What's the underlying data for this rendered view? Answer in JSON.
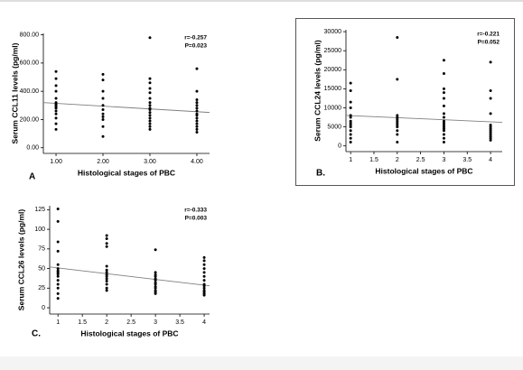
{
  "chart_data": [
    {
      "type": "scatter",
      "panel_label": "A",
      "xlabel": "Histological stages of PBC",
      "ylabel": "Serum CCL11 levels (pg/ml)",
      "annotations": [
        "r=-0.257",
        "P=0.023"
      ],
      "color": "#000000",
      "trend_color": "#7f7f7f",
      "xlim": [
        0.73,
        4.27
      ],
      "ylim": [
        -40,
        810
      ],
      "xticks": [
        {
          "value": 1,
          "label": "1.00"
        },
        {
          "value": 2,
          "label": "2.00"
        },
        {
          "value": 3,
          "label": "3.00"
        },
        {
          "value": 4,
          "label": "4.00"
        }
      ],
      "yticks": [
        {
          "value": 0,
          "label": "0.00"
        },
        {
          "value": 200,
          "label": "200.00"
        },
        {
          "value": 400,
          "label": "400.00"
        },
        {
          "value": 600,
          "label": "600.00"
        },
        {
          "value": 800,
          "label": "800.00"
        }
      ],
      "x": [
        1,
        1,
        1,
        1,
        1,
        1,
        1,
        1,
        1,
        1,
        1,
        1,
        1,
        1,
        1,
        2,
        2,
        2,
        2,
        2,
        2,
        2,
        2,
        2,
        2,
        2,
        3,
        3,
        3,
        3,
        3,
        3,
        3,
        3,
        3,
        3,
        3,
        3,
        3,
        3,
        3,
        3,
        3,
        4,
        4,
        4,
        4,
        4,
        4,
        4,
        4,
        4,
        4,
        4,
        4,
        4,
        4,
        4
      ],
      "values": [
        540,
        490,
        440,
        400,
        350,
        320,
        310,
        300,
        290,
        280,
        260,
        240,
        210,
        170,
        130,
        520,
        480,
        400,
        350,
        300,
        270,
        240,
        220,
        200,
        150,
        80,
        780,
        490,
        460,
        420,
        390,
        350,
        320,
        300,
        280,
        270,
        250,
        230,
        210,
        190,
        170,
        150,
        130,
        560,
        400,
        340,
        320,
        300,
        280,
        260,
        240,
        230,
        210,
        190,
        170,
        150,
        130,
        110
      ],
      "trend": {
        "x": [
          0.73,
          4.27
        ],
        "y": [
          320,
          250
        ]
      }
    },
    {
      "type": "scatter",
      "panel_label": "B.",
      "xlabel": "Histological stages of PBC",
      "ylabel": "Serum CCL24 levels (pg/ml)",
      "annotations": [
        "r=-0.221",
        "P=0.052"
      ],
      "color": "#000000",
      "trend_color": "#7f7f7f",
      "xlim": [
        0.9,
        4.25
      ],
      "ylim": [
        -1500,
        30500
      ],
      "xticks": [
        1,
        1.5,
        2,
        2.5,
        3,
        3.5,
        4
      ],
      "yticks": [
        0,
        5000,
        10000,
        15000,
        20000,
        25000,
        30000
      ],
      "x": [
        1,
        1,
        1,
        1,
        1,
        1,
        1,
        1,
        1,
        1,
        1,
        1,
        1,
        1,
        2,
        2,
        2,
        2,
        2,
        2,
        2,
        2,
        2,
        2,
        2,
        2,
        3,
        3,
        3,
        3,
        3,
        3,
        3,
        3,
        3,
        3,
        3,
        3,
        3,
        3,
        3,
        3,
        3,
        4,
        4,
        4,
        4,
        4,
        4,
        4,
        4,
        4,
        4,
        4,
        4,
        4
      ],
      "values": [
        16500,
        14500,
        11500,
        10000,
        8000,
        7500,
        6500,
        6000,
        5500,
        5000,
        4000,
        3000,
        2000,
        1000,
        28500,
        17500,
        8000,
        7500,
        7000,
        6500,
        6000,
        5500,
        5000,
        4000,
        3000,
        1000,
        22500,
        19000,
        15000,
        14000,
        12500,
        10500,
        8500,
        7500,
        6500,
        6000,
        5500,
        5000,
        4500,
        4000,
        3000,
        2000,
        1000,
        22000,
        14500,
        12500,
        8500,
        5500,
        5000,
        4500,
        4000,
        3500,
        3000,
        2500,
        2000,
        1500
      ],
      "trend": {
        "x": [
          0.9,
          4.25
        ],
        "y": [
          8000,
          6200
        ]
      }
    },
    {
      "type": "scatter",
      "panel_label": "C.",
      "xlabel": "Histological stages of PBC",
      "ylabel": "Serum CCL26 levels (pg/ml)",
      "annotations": [
        "r=-0.333",
        "P=0.003"
      ],
      "color": "#000000",
      "trend_color": "#7f7f7f",
      "xlim": [
        0.83,
        4.11
      ],
      "ylim": [
        -8,
        130
      ],
      "xticks": [
        1,
        1.5,
        2,
        2.5,
        3,
        3.5,
        4
      ],
      "yticks": [
        0,
        25,
        50,
        75,
        100,
        125
      ],
      "x": [
        1,
        1,
        1,
        1,
        1,
        1,
        1,
        1,
        1,
        1,
        1,
        1,
        1,
        1,
        1,
        2,
        2,
        2,
        2,
        2,
        2,
        2,
        2,
        2,
        2,
        2,
        2,
        2,
        2,
        3,
        3,
        3,
        3,
        3,
        3,
        3,
        3,
        3,
        3,
        3,
        3,
        3,
        4,
        4,
        4,
        4,
        4,
        4,
        4,
        4,
        4,
        4,
        4,
        4,
        4,
        4
      ],
      "values": [
        126,
        110,
        84,
        72,
        55,
        50,
        47,
        45,
        43,
        40,
        35,
        30,
        25,
        18,
        12,
        92,
        88,
        82,
        78,
        53,
        48,
        45,
        42,
        40,
        37,
        34,
        30,
        25,
        22,
        74,
        45,
        42,
        40,
        37,
        35,
        32,
        30,
        27,
        25,
        22,
        20,
        18,
        64,
        60,
        55,
        50,
        45,
        40,
        35,
        30,
        28,
        25,
        22,
        20,
        18,
        16
      ],
      "trend": {
        "x": [
          0.83,
          4.11
        ],
        "y": [
          52,
          28
        ]
      }
    }
  ]
}
